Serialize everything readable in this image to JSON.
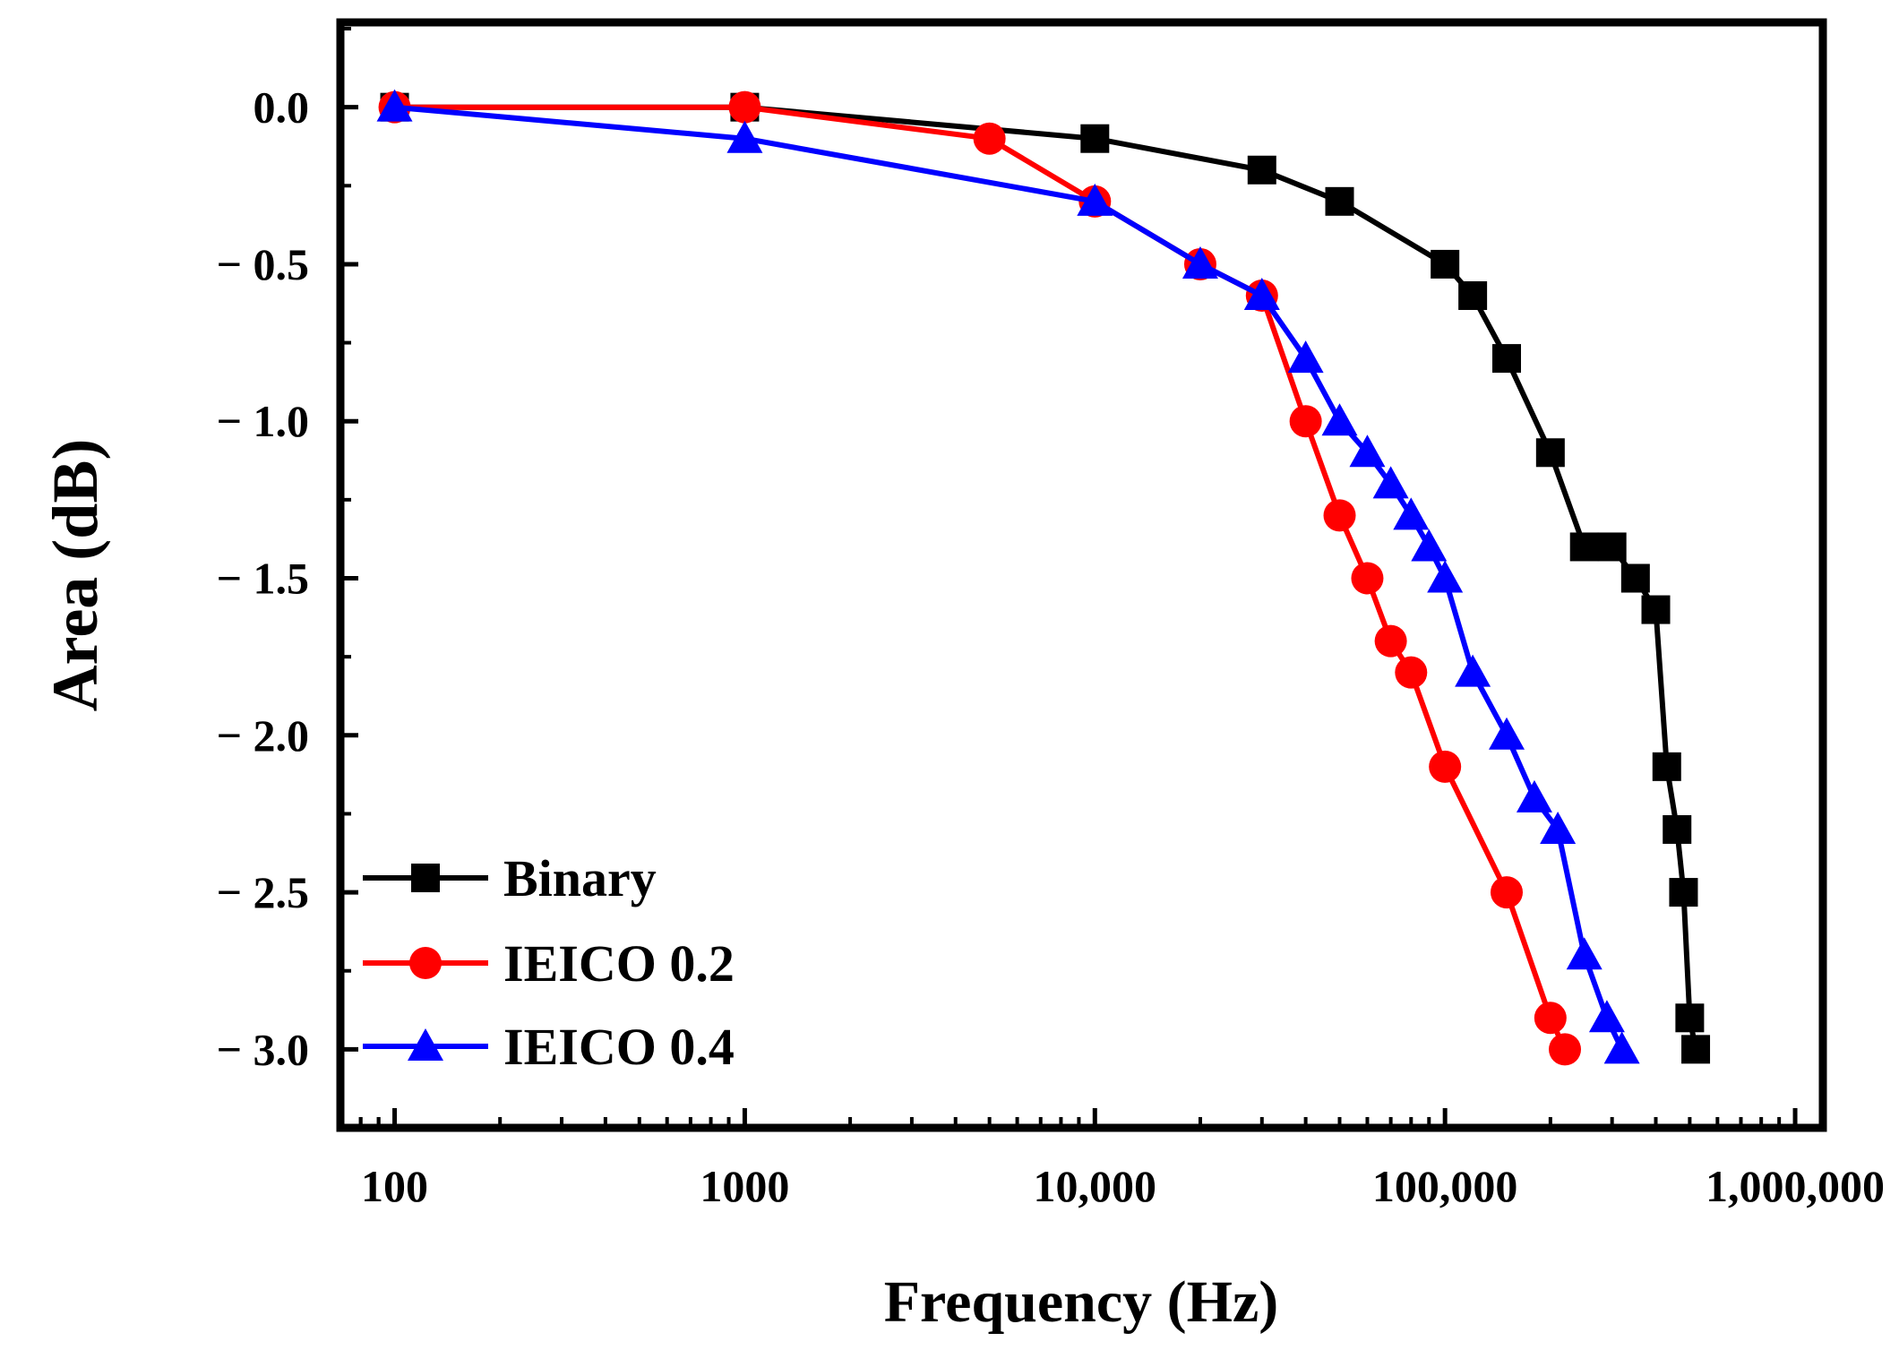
{
  "chart_data": {
    "type": "line",
    "title": "",
    "xlabel": "Frequency (Hz)",
    "ylabel": "Area (dB)",
    "xscale": "log",
    "xlim": [
      70,
      1200000
    ],
    "ylim": [
      -3.25,
      0.27
    ],
    "x_ticks": [
      {
        "value": 100,
        "label": "100"
      },
      {
        "value": 1000,
        "label": "1000"
      },
      {
        "value": 10000,
        "label": "10,000"
      },
      {
        "value": 100000,
        "label": "100,000"
      },
      {
        "value": 1000000,
        "label": "1,000,000"
      }
    ],
    "y_ticks": [
      {
        "value": 0.0,
        "label": "0.0"
      },
      {
        "value": -0.5,
        "label": "− 0.5"
      },
      {
        "value": -1.0,
        "label": "− 1.0"
      },
      {
        "value": -1.5,
        "label": "− 1.5"
      },
      {
        "value": -2.0,
        "label": "− 2.0"
      },
      {
        "value": -2.5,
        "label": "− 2.5"
      },
      {
        "value": -3.0,
        "label": "− 3.0"
      }
    ],
    "legend_position": "bottom-left",
    "series": [
      {
        "name": "Binary",
        "color": "#000000",
        "marker": "square",
        "x": [
          100,
          1000,
          10000,
          30000,
          50000,
          100000,
          120000,
          150000,
          200000,
          250000,
          300000,
          350000,
          400000,
          430000,
          460000,
          480000,
          500000,
          520000
        ],
        "y": [
          0.0,
          0.0,
          -0.1,
          -0.2,
          -0.3,
          -0.5,
          -0.6,
          -0.8,
          -1.1,
          -1.4,
          -1.4,
          -1.5,
          -1.6,
          -2.1,
          -2.3,
          -2.5,
          -2.9,
          -3.0
        ]
      },
      {
        "name": "IEICO 0.2",
        "color": "#ff0000",
        "marker": "circle",
        "x": [
          100,
          1000,
          5000,
          10000,
          20000,
          30000,
          40000,
          50000,
          60000,
          70000,
          80000,
          100000,
          150000,
          200000,
          220000
        ],
        "y": [
          0.0,
          0.0,
          -0.1,
          -0.3,
          -0.5,
          -0.6,
          -1.0,
          -1.3,
          -1.5,
          -1.7,
          -1.8,
          -2.1,
          -2.5,
          -2.9,
          -3.0
        ]
      },
      {
        "name": "IEICO 0.4",
        "color": "#0000ff",
        "marker": "triangle",
        "x": [
          100,
          1000,
          10000,
          20000,
          30000,
          40000,
          50000,
          60000,
          70000,
          80000,
          90000,
          100000,
          120000,
          150000,
          180000,
          210000,
          250000,
          290000,
          320000
        ],
        "y": [
          0.0,
          -0.1,
          -0.3,
          -0.5,
          -0.6,
          -0.8,
          -1.0,
          -1.1,
          -1.2,
          -1.3,
          -1.4,
          -1.5,
          -1.8,
          -2.0,
          -2.2,
          -2.3,
          -2.7,
          -2.9,
          -3.0
        ]
      }
    ]
  }
}
